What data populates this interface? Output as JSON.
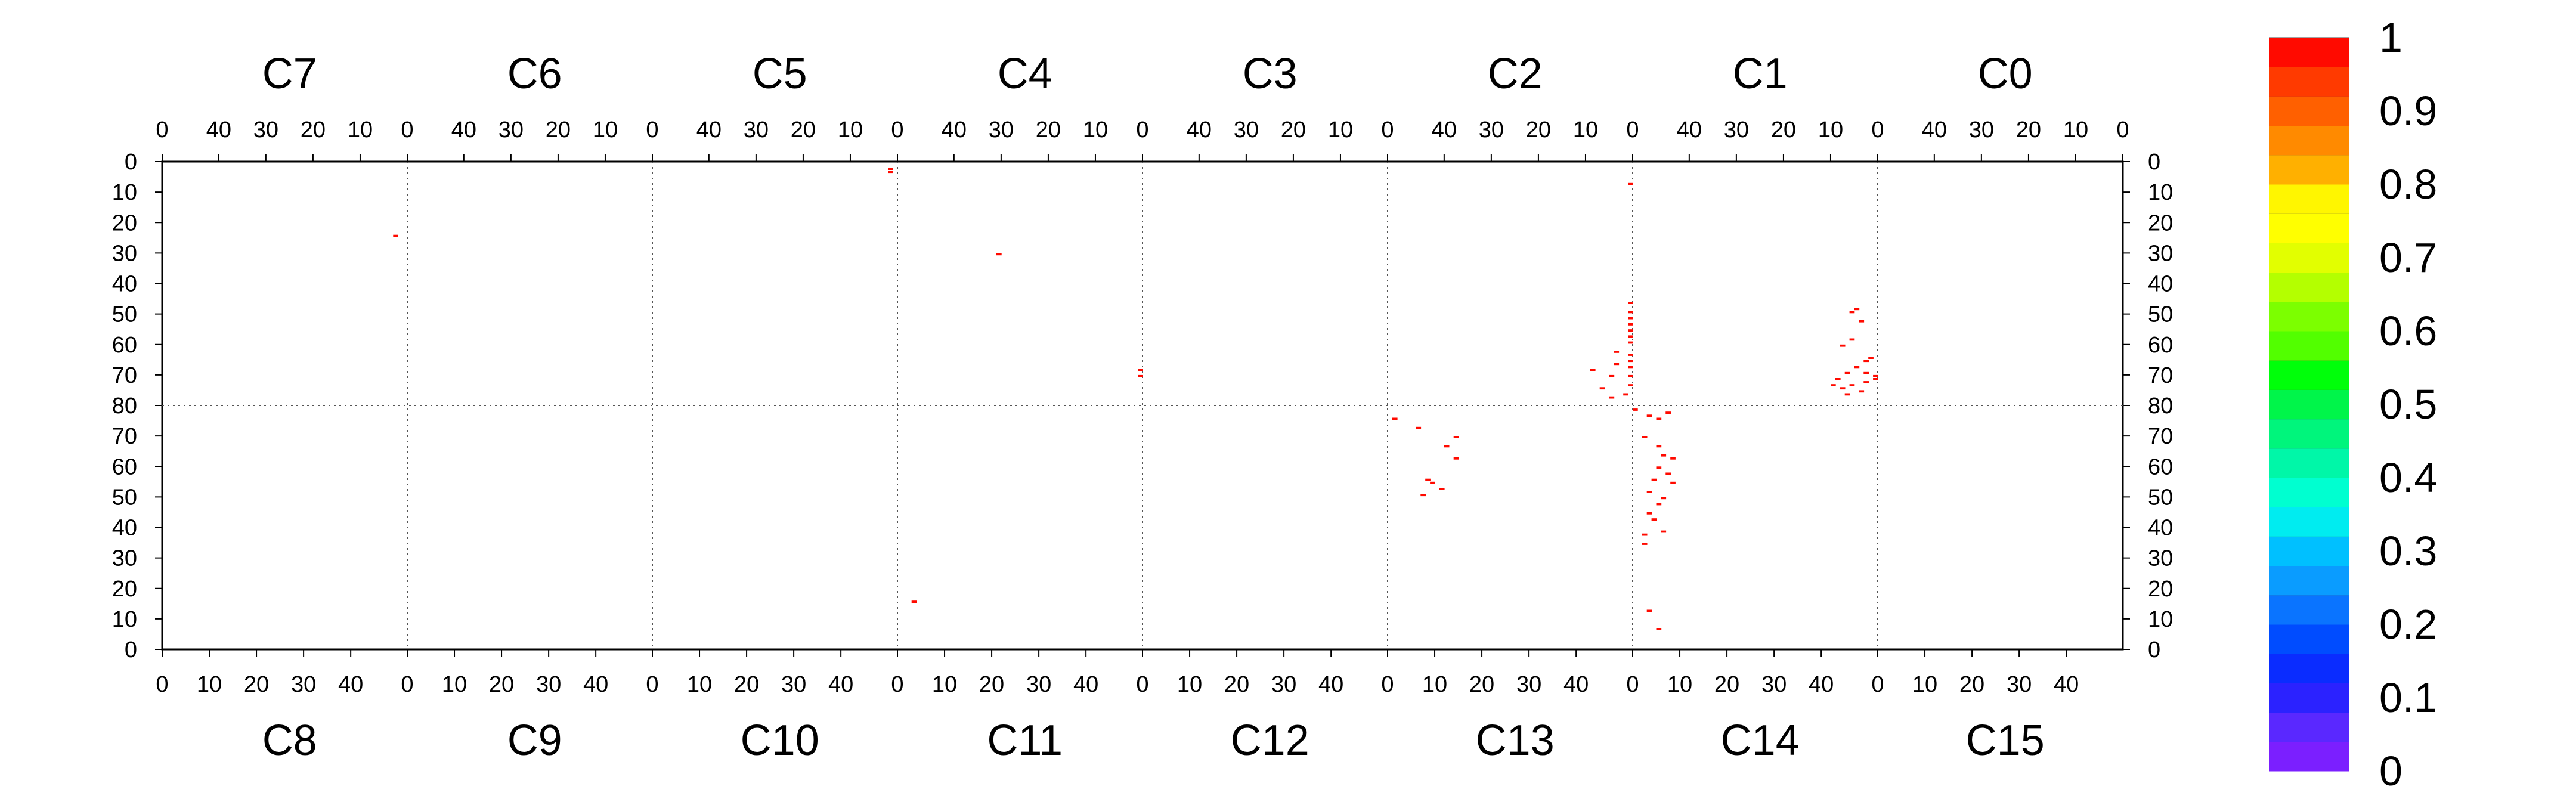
{
  "chart_data": {
    "type": "heatmap",
    "title": "",
    "top_regions": [
      "C7",
      "C6",
      "C5",
      "C4",
      "C3",
      "C2",
      "C1",
      "C0"
    ],
    "bottom_regions": [
      "C8",
      "C9",
      "C10",
      "C11",
      "C12",
      "C13",
      "C14",
      "C15"
    ],
    "top_x_ticks": [
      "40",
      "30",
      "20",
      "10",
      "0"
    ],
    "bottom_x_ticks": [
      "0",
      "10",
      "20",
      "30",
      "40"
    ],
    "top_y_ticks": [
      "0",
      "10",
      "20",
      "30",
      "40",
      "50",
      "60",
      "70",
      "80"
    ],
    "bottom_y_ticks": [
      "70",
      "60",
      "50",
      "40",
      "30",
      "20",
      "10",
      "0"
    ],
    "x_per_region": [
      0,
      52
    ],
    "y_top_range": [
      0,
      80
    ],
    "y_bottom_range": [
      80,
      0
    ],
    "colorbar": {
      "range": [
        0,
        1
      ],
      "tick_labels": [
        "0",
        "0.1",
        "0.2",
        "0.3",
        "0.4",
        "0.5",
        "0.6",
        "0.7",
        "0.8",
        "0.9",
        "1"
      ],
      "colors": [
        "#7b1fff",
        "#5a28ff",
        "#2b22ff",
        "#0a2cff",
        "#004cff",
        "#0a74ff",
        "#0a9cff",
        "#00c0ff",
        "#00ecf0",
        "#00ffd0",
        "#00f7a8",
        "#00f57c",
        "#00f54a",
        "#00ff0a",
        "#52ff00",
        "#7cff00",
        "#b4ff00",
        "#e2ff00",
        "#ffff00",
        "#fff600",
        "#ffb000",
        "#ff8a00",
        "#ff6000",
        "#ff3a00",
        "#ff0a00"
      ]
    },
    "grid": "dotted region separators",
    "points": [
      {
        "region": "C7",
        "x": 2,
        "y": 24,
        "value": 1
      },
      {
        "region": "C5",
        "x": 1,
        "y": 2,
        "value": 1
      },
      {
        "region": "C5",
        "x": 1,
        "y": 3,
        "value": 1
      },
      {
        "region": "C4",
        "x": 30,
        "y": 30,
        "value": 1
      },
      {
        "region": "C4",
        "x": 0,
        "y": 68,
        "value": 1
      },
      {
        "region": "C4",
        "x": 0,
        "y": 70,
        "value": 1
      },
      {
        "region": "C1",
        "x": 0,
        "y": 70,
        "value": 1
      },
      {
        "region": "C1",
        "x": 0,
        "y": 71,
        "value": 1
      },
      {
        "region": "C2",
        "x": 0,
        "y": 7,
        "value": 1
      },
      {
        "region": "C2",
        "x": 0,
        "y": 46,
        "value": 1
      },
      {
        "region": "C2",
        "x": 0,
        "y": 49,
        "value": 1
      },
      {
        "region": "C2",
        "x": 0,
        "y": 51,
        "value": 1
      },
      {
        "region": "C2",
        "x": 0,
        "y": 53,
        "value": 1
      },
      {
        "region": "C2",
        "x": 0,
        "y": 55,
        "value": 1
      },
      {
        "region": "C2",
        "x": 0,
        "y": 57,
        "value": 1
      },
      {
        "region": "C2",
        "x": 0,
        "y": 59,
        "value": 1
      },
      {
        "region": "C2",
        "x": 0,
        "y": 63,
        "value": 1
      },
      {
        "region": "C2",
        "x": 0,
        "y": 65,
        "value": 1
      },
      {
        "region": "C2",
        "x": 0,
        "y": 67,
        "value": 1
      },
      {
        "region": "C2",
        "x": 0,
        "y": 70,
        "value": 1
      },
      {
        "region": "C2",
        "x": 0,
        "y": 73,
        "value": 1
      },
      {
        "region": "C2",
        "x": 1,
        "y": 76,
        "value": 1
      },
      {
        "region": "C2",
        "x": 3,
        "y": 62,
        "value": 1
      },
      {
        "region": "C2",
        "x": 3,
        "y": 66,
        "value": 1
      },
      {
        "region": "C2",
        "x": 4,
        "y": 70,
        "value": 1
      },
      {
        "region": "C2",
        "x": 6,
        "y": 74,
        "value": 1
      },
      {
        "region": "C2",
        "x": 8,
        "y": 68,
        "value": 1
      },
      {
        "region": "C2",
        "x": 4,
        "y": 77,
        "value": 1
      },
      {
        "region": "C1",
        "x": 1,
        "y": 64,
        "value": 1
      },
      {
        "region": "C1",
        "x": 2,
        "y": 65,
        "value": 1
      },
      {
        "region": "C1",
        "x": 2,
        "y": 69,
        "value": 1
      },
      {
        "region": "C1",
        "x": 2,
        "y": 72,
        "value": 1
      },
      {
        "region": "C1",
        "x": 3,
        "y": 75,
        "value": 1
      },
      {
        "region": "C1",
        "x": 4,
        "y": 48,
        "value": 1
      },
      {
        "region": "C1",
        "x": 5,
        "y": 49,
        "value": 1
      },
      {
        "region": "C1",
        "x": 3,
        "y": 52,
        "value": 1
      },
      {
        "region": "C1",
        "x": 5,
        "y": 58,
        "value": 1
      },
      {
        "region": "C1",
        "x": 7,
        "y": 60,
        "value": 1
      },
      {
        "region": "C1",
        "x": 4,
        "y": 67,
        "value": 1
      },
      {
        "region": "C1",
        "x": 6,
        "y": 69,
        "value": 1
      },
      {
        "region": "C1",
        "x": 8,
        "y": 71,
        "value": 1
      },
      {
        "region": "C1",
        "x": 5,
        "y": 73,
        "value": 1
      },
      {
        "region": "C1",
        "x": 7,
        "y": 74,
        "value": 1
      },
      {
        "region": "C1",
        "x": 6,
        "y": 76,
        "value": 1
      },
      {
        "region": "C1",
        "x": 9,
        "y": 73,
        "value": 1
      },
      {
        "region": "C14",
        "x": 0,
        "y": 78,
        "value": 1
      },
      {
        "region": "C14",
        "x": 3,
        "y": 76,
        "value": 1
      },
      {
        "region": "C14",
        "x": 5,
        "y": 75,
        "value": 1
      },
      {
        "region": "C14",
        "x": 7,
        "y": 77,
        "value": 1
      },
      {
        "region": "C14",
        "x": 2,
        "y": 69,
        "value": 1
      },
      {
        "region": "C14",
        "x": 5,
        "y": 66,
        "value": 1
      },
      {
        "region": "C14",
        "x": 6,
        "y": 63,
        "value": 1
      },
      {
        "region": "C14",
        "x": 8,
        "y": 62,
        "value": 1
      },
      {
        "region": "C14",
        "x": 5,
        "y": 59,
        "value": 1
      },
      {
        "region": "C14",
        "x": 7,
        "y": 57,
        "value": 1
      },
      {
        "region": "C14",
        "x": 4,
        "y": 55,
        "value": 1
      },
      {
        "region": "C14",
        "x": 8,
        "y": 54,
        "value": 1
      },
      {
        "region": "C14",
        "x": 3,
        "y": 51,
        "value": 1
      },
      {
        "region": "C14",
        "x": 6,
        "y": 49,
        "value": 1
      },
      {
        "region": "C14",
        "x": 5,
        "y": 47,
        "value": 1
      },
      {
        "region": "C14",
        "x": 3,
        "y": 44,
        "value": 1
      },
      {
        "region": "C14",
        "x": 4,
        "y": 42,
        "value": 1
      },
      {
        "region": "C14",
        "x": 6,
        "y": 38,
        "value": 1
      },
      {
        "region": "C14",
        "x": 2,
        "y": 37,
        "value": 1
      },
      {
        "region": "C14",
        "x": 2,
        "y": 34,
        "value": 1
      },
      {
        "region": "C14",
        "x": 3,
        "y": 12,
        "value": 1
      },
      {
        "region": "C14",
        "x": 5,
        "y": 6,
        "value": 1
      },
      {
        "region": "C13",
        "x": 1,
        "y": 75,
        "value": 1
      },
      {
        "region": "C13",
        "x": 6,
        "y": 72,
        "value": 1
      },
      {
        "region": "C13",
        "x": 14,
        "y": 69,
        "value": 1
      },
      {
        "region": "C13",
        "x": 12,
        "y": 66,
        "value": 1
      },
      {
        "region": "C13",
        "x": 14,
        "y": 62,
        "value": 1
      },
      {
        "region": "C13",
        "x": 8,
        "y": 55,
        "value": 1
      },
      {
        "region": "C13",
        "x": 9,
        "y": 54,
        "value": 1
      },
      {
        "region": "C13",
        "x": 11,
        "y": 52,
        "value": 1
      },
      {
        "region": "C13",
        "x": 7,
        "y": 50,
        "value": 1
      },
      {
        "region": "C11",
        "x": 3,
        "y": 15,
        "value": 1
      }
    ]
  }
}
